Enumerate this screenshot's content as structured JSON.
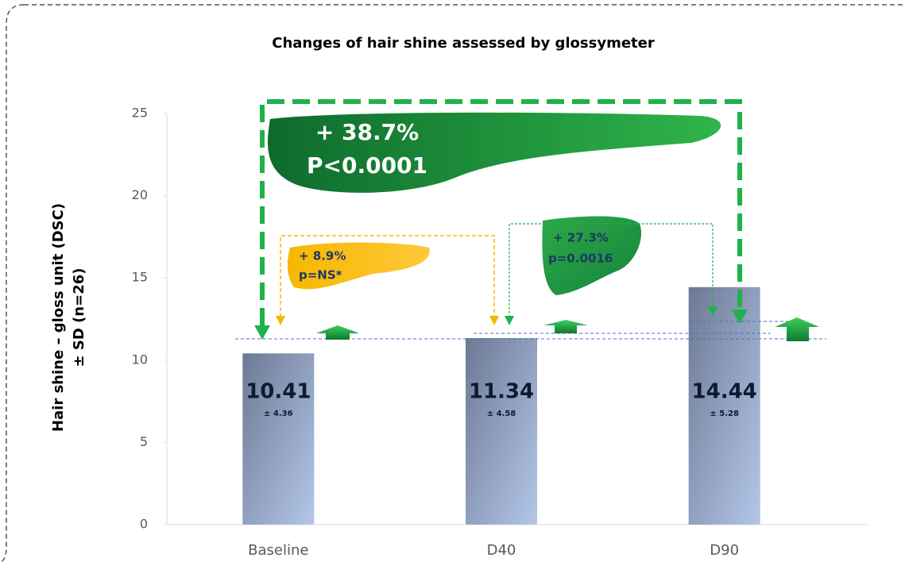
{
  "chart_data": {
    "type": "bar",
    "title": "Changes of hair shine assessed by glossymeter",
    "y_label": [
      "Hair shine – gloss unit (DSC)",
      "± SD (n=26)"
    ],
    "categories": [
      "Baseline",
      "D40",
      "D90"
    ],
    "values": [
      10.41,
      11.34,
      14.44
    ],
    "sd_labels": [
      "± 4.36",
      "± 4.58",
      "± 5.28"
    ],
    "ylim": [
      0,
      25
    ],
    "yticks": [
      0,
      5,
      10,
      15,
      20,
      25
    ],
    "annotations": {
      "total": [
        "+ 38.7%",
        "P<0.0001"
      ],
      "d40": [
        "+ 8.9%",
        "p=NS*"
      ],
      "d90": [
        "+ 27.3%",
        "p=0.0016"
      ]
    }
  }
}
